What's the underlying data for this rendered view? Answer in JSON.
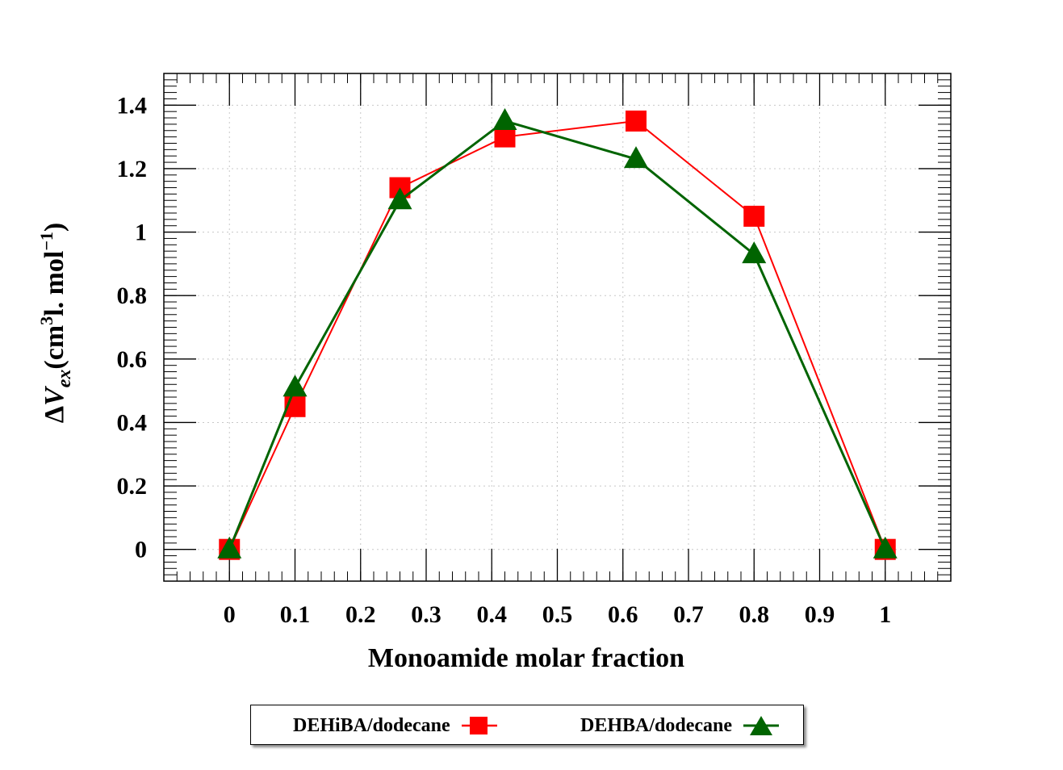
{
  "chart_data": {
    "type": "line",
    "title": "",
    "xlabel": "Monoamide molar fraction",
    "ylabel": {
      "prefix": "Δ",
      "var": "V",
      "sub": "ex",
      "unit_open": "(cm",
      "unit_sup1": "3",
      "unit_mid": "l. mol",
      "unit_sup2": "−1",
      "unit_close": ")"
    },
    "xlim": [
      -0.1,
      1.1
    ],
    "ylim": [
      -0.1,
      1.5
    ],
    "xticks": [
      0,
      0.1,
      0.2,
      0.3,
      0.4,
      0.5,
      0.6,
      0.7,
      0.8,
      0.9,
      1
    ],
    "xtick_labels": [
      "0",
      "0.1",
      "0.2",
      "0.3",
      "0.4",
      "0.5",
      "0.6",
      "0.7",
      "0.8",
      "0.9",
      "1"
    ],
    "yticks": [
      0,
      0.2,
      0.4,
      0.6,
      0.8,
      1.0,
      1.2,
      1.4
    ],
    "ytick_labels": [
      "0",
      "0.2",
      "0.4",
      "0.6",
      "0.8",
      "1",
      "1.2",
      "1.4"
    ],
    "grid": true,
    "legend_position": "bottom",
    "series": [
      {
        "name": "DEHiBA/dodecane",
        "color": "#ff0000",
        "marker": "square",
        "x": [
          0,
          0.1,
          0.26,
          0.42,
          0.62,
          0.8,
          1.0
        ],
        "y": [
          0,
          0.45,
          1.14,
          1.3,
          1.35,
          1.05,
          0
        ]
      },
      {
        "name": "DEHBA/dodecane",
        "color": "#006400",
        "marker": "triangle",
        "x": [
          0,
          0.1,
          0.26,
          0.42,
          0.62,
          0.8,
          1.0
        ],
        "y": [
          0,
          0.51,
          1.1,
          1.35,
          1.23,
          0.93,
          0
        ]
      }
    ]
  }
}
